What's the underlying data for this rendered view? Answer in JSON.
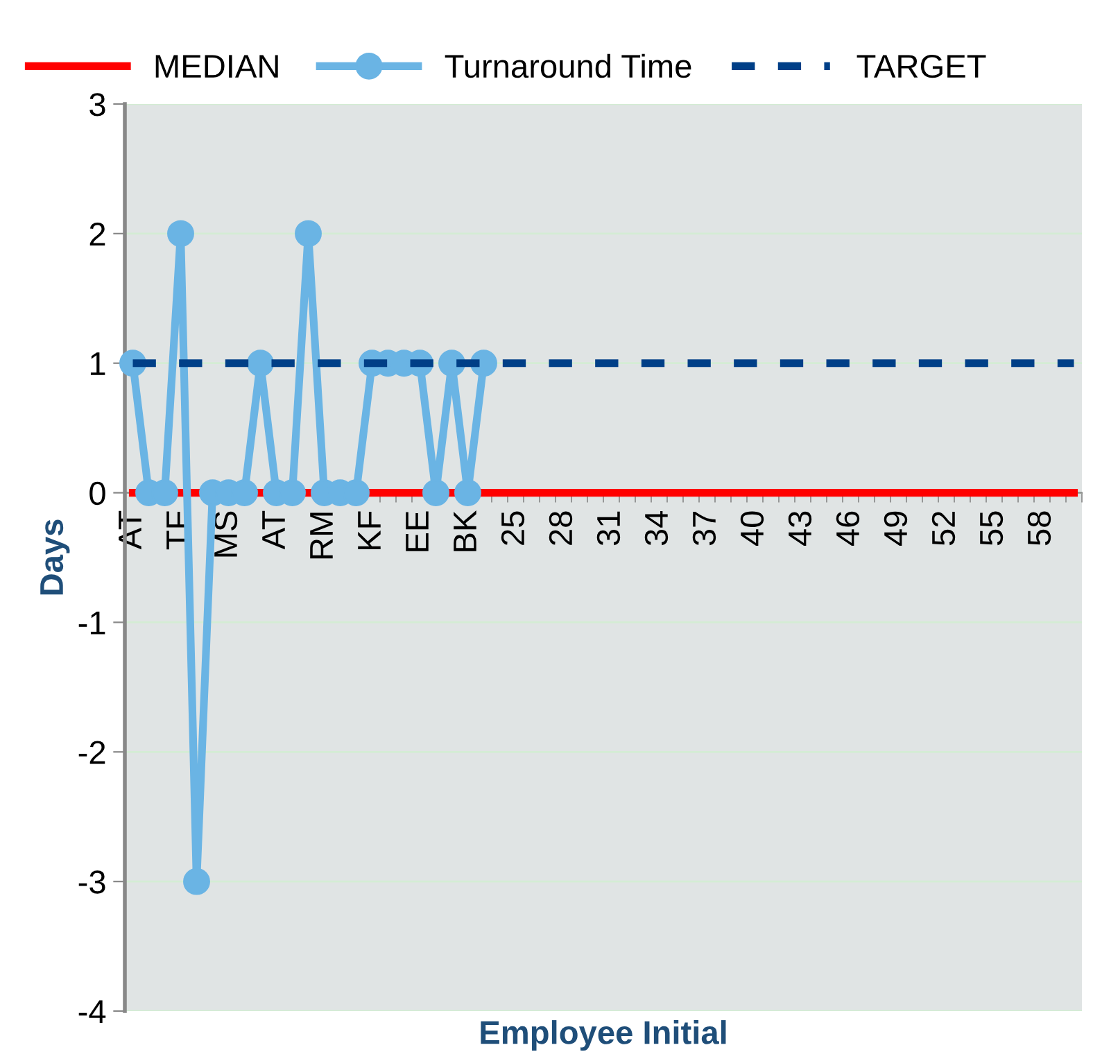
{
  "chart_data": {
    "type": "line",
    "xlabel": "Employee Initial",
    "ylabel": "Days",
    "categories": [
      "AT",
      null,
      null,
      "TF",
      null,
      null,
      "MS",
      null,
      null,
      "AT",
      null,
      null,
      "RM",
      null,
      null,
      "KF",
      null,
      null,
      "EE",
      null,
      null,
      "BK",
      null,
      null,
      "25",
      null,
      null,
      "28",
      null,
      null,
      "31",
      null,
      null,
      "34",
      null,
      null,
      "37",
      null,
      null,
      "40",
      null,
      null,
      "43",
      null,
      null,
      "46",
      null,
      null,
      "49",
      null,
      null,
      "52",
      null,
      null,
      "55",
      null,
      null,
      "58",
      null,
      null
    ],
    "series": [
      {
        "name": "MEDIAN",
        "color": "#ff0000",
        "marker": "none",
        "line_style": "solid",
        "values": [
          0,
          0,
          0,
          0,
          0,
          0,
          0,
          0,
          0,
          0,
          0,
          0,
          0,
          0,
          0,
          0,
          0,
          0,
          0,
          0,
          0,
          0,
          0,
          0,
          0,
          0,
          0,
          0,
          0,
          0,
          0,
          0,
          0,
          0,
          0,
          0,
          0,
          0,
          0,
          0,
          0,
          0,
          0,
          0,
          0,
          0,
          0,
          0,
          0,
          0,
          0,
          0,
          0,
          0,
          0,
          0,
          0,
          0,
          0,
          0
        ]
      },
      {
        "name": "Turnaround Time",
        "color": "#6ab4e4",
        "marker": "circle",
        "line_style": "solid",
        "values": [
          1,
          0,
          0,
          2,
          -3,
          0,
          0,
          0,
          1,
          0,
          0,
          2,
          0,
          0,
          0,
          1,
          1,
          1,
          1,
          0,
          1,
          0,
          1,
          null,
          null,
          null,
          null,
          null,
          null,
          null,
          null,
          null,
          null,
          null,
          null,
          null,
          null,
          null,
          null,
          null,
          null,
          null,
          null,
          null,
          null,
          null,
          null,
          null,
          null,
          null,
          null,
          null,
          null,
          null,
          null,
          null,
          null,
          null,
          null,
          null
        ]
      },
      {
        "name": "TARGET",
        "color": "#003f87",
        "marker": "none",
        "line_style": "dashed",
        "values": [
          1,
          1,
          1,
          1,
          1,
          1,
          1,
          1,
          1,
          1,
          1,
          1,
          1,
          1,
          1,
          1,
          1,
          1,
          1,
          1,
          1,
          1,
          1,
          1,
          1,
          1,
          1,
          1,
          1,
          1,
          1,
          1,
          1,
          1,
          1,
          1,
          1,
          1,
          1,
          1,
          1,
          1,
          1,
          1,
          1,
          1,
          1,
          1,
          1,
          1,
          1,
          1,
          1,
          1,
          1,
          1,
          1,
          1,
          1,
          1
        ]
      }
    ],
    "ylim": [
      -4,
      3
    ],
    "yticks": [
      -4,
      -3,
      -2,
      -1,
      0,
      1,
      2,
      3
    ],
    "grid": "y",
    "legend": "top"
  }
}
